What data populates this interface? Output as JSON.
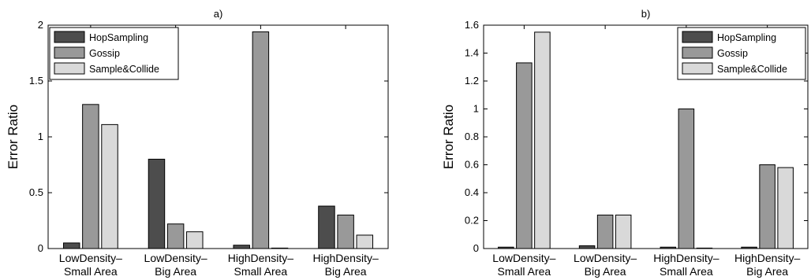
{
  "chart_data": [
    {
      "type": "bar",
      "title": "a)",
      "xlabel": "",
      "ylabel": "Error Ratio",
      "ylim": [
        0,
        2
      ],
      "yticks": [
        "0",
        "0.5",
        "1",
        "1.5",
        "2"
      ],
      "ytick_values": [
        0,
        0.5,
        1,
        1.5,
        2
      ],
      "categories": [
        [
          "LowDensity–",
          "Small Area"
        ],
        [
          "LowDensity–",
          "Big Area"
        ],
        [
          "HighDensity–",
          "Small Area"
        ],
        [
          "HighDensity–",
          "Big Area"
        ]
      ],
      "legend_position": "top-left",
      "series": [
        {
          "name": "HopSampling",
          "color": "#4d4d4d",
          "values": [
            0.05,
            0.8,
            0.03,
            0.38
          ]
        },
        {
          "name": "Gossip",
          "color": "#999999",
          "values": [
            1.29,
            0.22,
            1.94,
            0.3
          ]
        },
        {
          "name": "Sample&Collide",
          "color": "#d9d9d9",
          "values": [
            1.11,
            0.15,
            0.0,
            0.12
          ]
        }
      ]
    },
    {
      "type": "bar",
      "title": "b)",
      "xlabel": "",
      "ylabel": "Error Ratio",
      "ylim": [
        0,
        1.6
      ],
      "yticks": [
        "0",
        "0.2",
        "0.4",
        "0.6",
        "0.8",
        "1",
        "1.2",
        "1.4",
        "1.6"
      ],
      "ytick_values": [
        0,
        0.2,
        0.4,
        0.6,
        0.8,
        1,
        1.2,
        1.4,
        1.6
      ],
      "categories": [
        [
          "LowDensity–",
          "Small Area"
        ],
        [
          "LowDensity–",
          "Big Area"
        ],
        [
          "HighDensity–",
          "Small Area"
        ],
        [
          "HighDensity–",
          "Big Area"
        ]
      ],
      "legend_position": "top-right",
      "series": [
        {
          "name": "HopSampling",
          "color": "#4d4d4d",
          "values": [
            0.01,
            0.02,
            0.01,
            0.01
          ]
        },
        {
          "name": "Gossip",
          "color": "#999999",
          "values": [
            1.33,
            0.24,
            1.0,
            0.6
          ]
        },
        {
          "name": "Sample&Collide",
          "color": "#d9d9d9",
          "values": [
            1.55,
            0.24,
            0.0,
            0.58
          ]
        }
      ]
    }
  ]
}
